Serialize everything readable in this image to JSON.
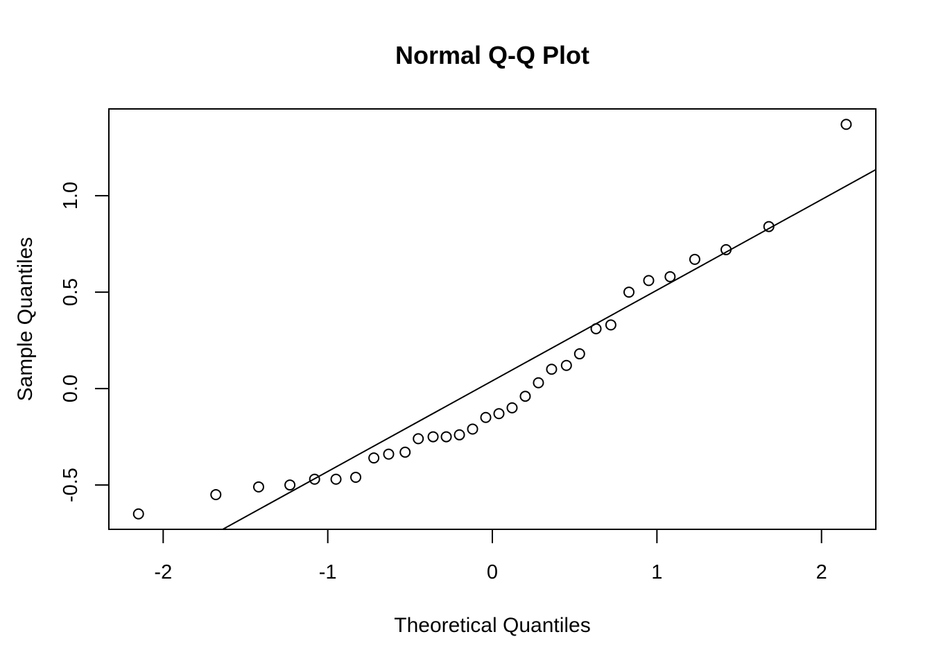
{
  "chart_data": {
    "type": "scatter",
    "title": "Normal Q-Q Plot",
    "xlabel": "Theoretical Quantiles",
    "ylabel": "Sample Quantiles",
    "xlim": [
      -2.33,
      2.33
    ],
    "ylim": [
      -0.73,
      1.45
    ],
    "x_ticks": [
      -2,
      -1,
      0,
      1,
      2
    ],
    "x_tick_labels": [
      "-2",
      "-1",
      "0",
      "1",
      "2"
    ],
    "y_ticks": [
      -0.5,
      0.0,
      0.5,
      1.0
    ],
    "y_tick_labels": [
      "-0.5",
      "0.0",
      "0.5",
      "1.0"
    ],
    "grid": false,
    "legend": "none",
    "marker": "open-circle",
    "points": [
      {
        "x": -2.15,
        "y": -0.65
      },
      {
        "x": -1.68,
        "y": -0.55
      },
      {
        "x": -1.42,
        "y": -0.51
      },
      {
        "x": -1.23,
        "y": -0.5
      },
      {
        "x": -1.08,
        "y": -0.47
      },
      {
        "x": -0.95,
        "y": -0.47
      },
      {
        "x": -0.83,
        "y": -0.46
      },
      {
        "x": -0.72,
        "y": -0.36
      },
      {
        "x": -0.63,
        "y": -0.34
      },
      {
        "x": -0.53,
        "y": -0.33
      },
      {
        "x": -0.45,
        "y": -0.26
      },
      {
        "x": -0.36,
        "y": -0.25
      },
      {
        "x": -0.28,
        "y": -0.25
      },
      {
        "x": -0.2,
        "y": -0.24
      },
      {
        "x": -0.12,
        "y": -0.21
      },
      {
        "x": -0.04,
        "y": -0.15
      },
      {
        "x": 0.04,
        "y": -0.13
      },
      {
        "x": 0.12,
        "y": -0.1
      },
      {
        "x": 0.2,
        "y": -0.04
      },
      {
        "x": 0.28,
        "y": 0.03
      },
      {
        "x": 0.36,
        "y": 0.1
      },
      {
        "x": 0.45,
        "y": 0.12
      },
      {
        "x": 0.53,
        "y": 0.18
      },
      {
        "x": 0.63,
        "y": 0.31
      },
      {
        "x": 0.72,
        "y": 0.33
      },
      {
        "x": 0.83,
        "y": 0.5
      },
      {
        "x": 0.95,
        "y": 0.56
      },
      {
        "x": 1.08,
        "y": 0.58
      },
      {
        "x": 1.23,
        "y": 0.67
      },
      {
        "x": 1.42,
        "y": 0.72
      },
      {
        "x": 1.68,
        "y": 0.84
      },
      {
        "x": 2.15,
        "y": 1.37
      }
    ],
    "reference_line": {
      "intercept": 0.04,
      "slope": 0.47
    }
  }
}
